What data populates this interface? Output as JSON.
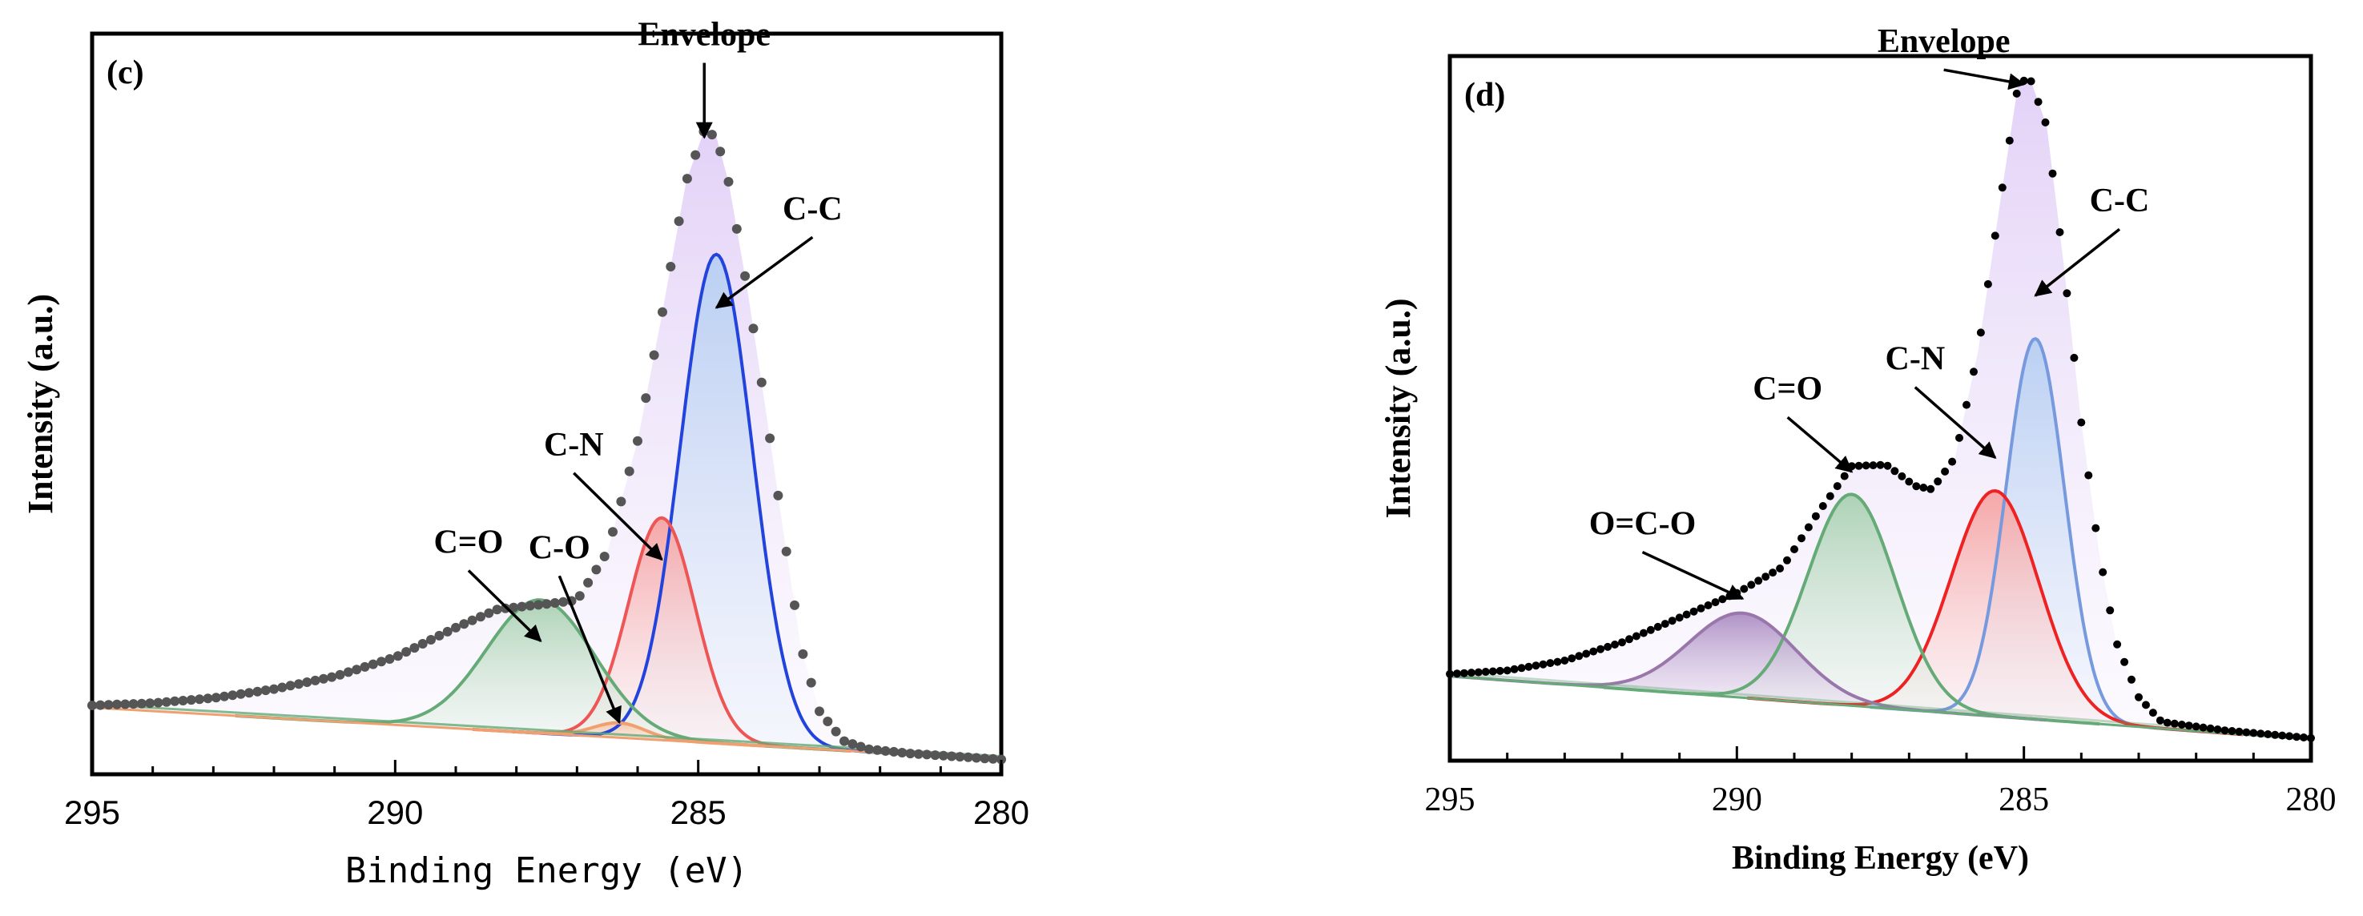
{
  "chart_data": [
    {
      "type": "line",
      "panel_label": "(c)",
      "xlabel": "Binding Energy (eV)",
      "ylabel": "Intensity (a.u.)",
      "xlim": [
        295,
        280
      ],
      "ylim": [
        0,
        100
      ],
      "x_ticks": [
        "295",
        "290",
        "285",
        "280"
      ],
      "grid": false,
      "baseline": {
        "x_start": 295,
        "x_end": 280,
        "y_start": 9.0,
        "y_end": 2.0
      },
      "envelope_points": [
        [
          295,
          9.3
        ],
        [
          294,
          9.6
        ],
        [
          293,
          10.3
        ],
        [
          292,
          11.5
        ],
        [
          291,
          13.2
        ],
        [
          290,
          15.8
        ],
        [
          289,
          19.8
        ],
        [
          288.3,
          22.3
        ],
        [
          287.5,
          23.0
        ],
        [
          287,
          23.5
        ],
        [
          286.5,
          30
        ],
        [
          286,
          45
        ],
        [
          285.6,
          62
        ],
        [
          285.2,
          80
        ],
        [
          284.9,
          87
        ],
        [
          284.7,
          86
        ],
        [
          284.5,
          80
        ],
        [
          284.2,
          66
        ],
        [
          283.9,
          50
        ],
        [
          283.6,
          33
        ],
        [
          283.3,
          17
        ],
        [
          283.0,
          8.5
        ],
        [
          282.6,
          4.5
        ],
        [
          282.2,
          3.4
        ],
        [
          281.5,
          2.8
        ],
        [
          280,
          2.0
        ]
      ],
      "components": [
        {
          "name": "C-C",
          "center": 284.7,
          "fwhm": 1.4,
          "height": 66,
          "color": "#2244dd"
        },
        {
          "name": "C-N",
          "center": 285.6,
          "fwhm": 1.3,
          "height": 30,
          "color": "#ee5555"
        },
        {
          "name": "C=O",
          "center": 287.6,
          "fwhm": 2.1,
          "height": 18,
          "color": "#66aa77"
        },
        {
          "name": "C-O",
          "center": 286.3,
          "fwhm": 1.0,
          "height": 2,
          "color": "#f0a070"
        }
      ],
      "annotations": [
        {
          "text": "Envelope",
          "x": 284.9,
          "y": 86
        },
        {
          "text": "C-C",
          "x": 284.7,
          "y": 63
        },
        {
          "text": "C-N",
          "x": 285.6,
          "y": 29
        },
        {
          "text": "C=O",
          "x": 287.6,
          "y": 18
        },
        {
          "text": "C-O",
          "x": 286.3,
          "y": 7
        }
      ]
    },
    {
      "type": "line",
      "panel_label": "(d)",
      "xlabel": "Binding Energy (eV)",
      "ylabel": "Intensity (a.u.)",
      "xlim": [
        295,
        280
      ],
      "ylim": [
        0,
        100
      ],
      "x_ticks": [
        "295",
        "290",
        "285",
        "280"
      ],
      "grid": false,
      "baseline": {
        "x_start": 295,
        "x_end": 280,
        "y_start": 12,
        "y_end": 3
      },
      "envelope_points": [
        [
          295,
          12.3
        ],
        [
          294,
          12.8
        ],
        [
          293,
          14.2
        ],
        [
          292,
          16.8
        ],
        [
          291,
          20.3
        ],
        [
          290,
          23.8
        ],
        [
          289.2,
          27.5
        ],
        [
          288.6,
          35
        ],
        [
          288.0,
          41.8
        ],
        [
          287.4,
          42
        ],
        [
          286.9,
          39
        ],
        [
          286.6,
          38.5
        ],
        [
          286.2,
          43
        ],
        [
          285.8,
          58
        ],
        [
          285.4,
          80
        ],
        [
          285.1,
          96
        ],
        [
          284.9,
          97
        ],
        [
          284.6,
          90
        ],
        [
          284.3,
          70
        ],
        [
          284.0,
          48
        ],
        [
          283.7,
          30
        ],
        [
          283.4,
          17
        ],
        [
          283.0,
          9
        ],
        [
          282.6,
          5.5
        ],
        [
          281.5,
          4.3
        ],
        [
          280,
          3.2
        ]
      ],
      "components": [
        {
          "name": "C-C",
          "center": 284.8,
          "fwhm": 1.2,
          "height": 54,
          "color": "#7799dd"
        },
        {
          "name": "C-N",
          "center": 285.5,
          "fwhm": 1.8,
          "height": 32,
          "color": "#ee2222"
        },
        {
          "name": "C=O",
          "center": 288.0,
          "fwhm": 1.8,
          "height": 30,
          "color": "#66aa77"
        },
        {
          "name": "O=C-O",
          "center": 289.9,
          "fwhm": 2.2,
          "height": 12,
          "color": "#9977aa"
        }
      ],
      "annotations": [
        {
          "text": "Envelope",
          "x": 285.0,
          "y": 96
        },
        {
          "text": "C-C",
          "x": 284.8,
          "y": 66
        },
        {
          "text": "C-N",
          "x": 285.5,
          "y": 43
        },
        {
          "text": "C=O",
          "x": 288.0,
          "y": 41
        },
        {
          "text": "O=C-O",
          "x": 289.9,
          "y": 23
        }
      ]
    }
  ]
}
